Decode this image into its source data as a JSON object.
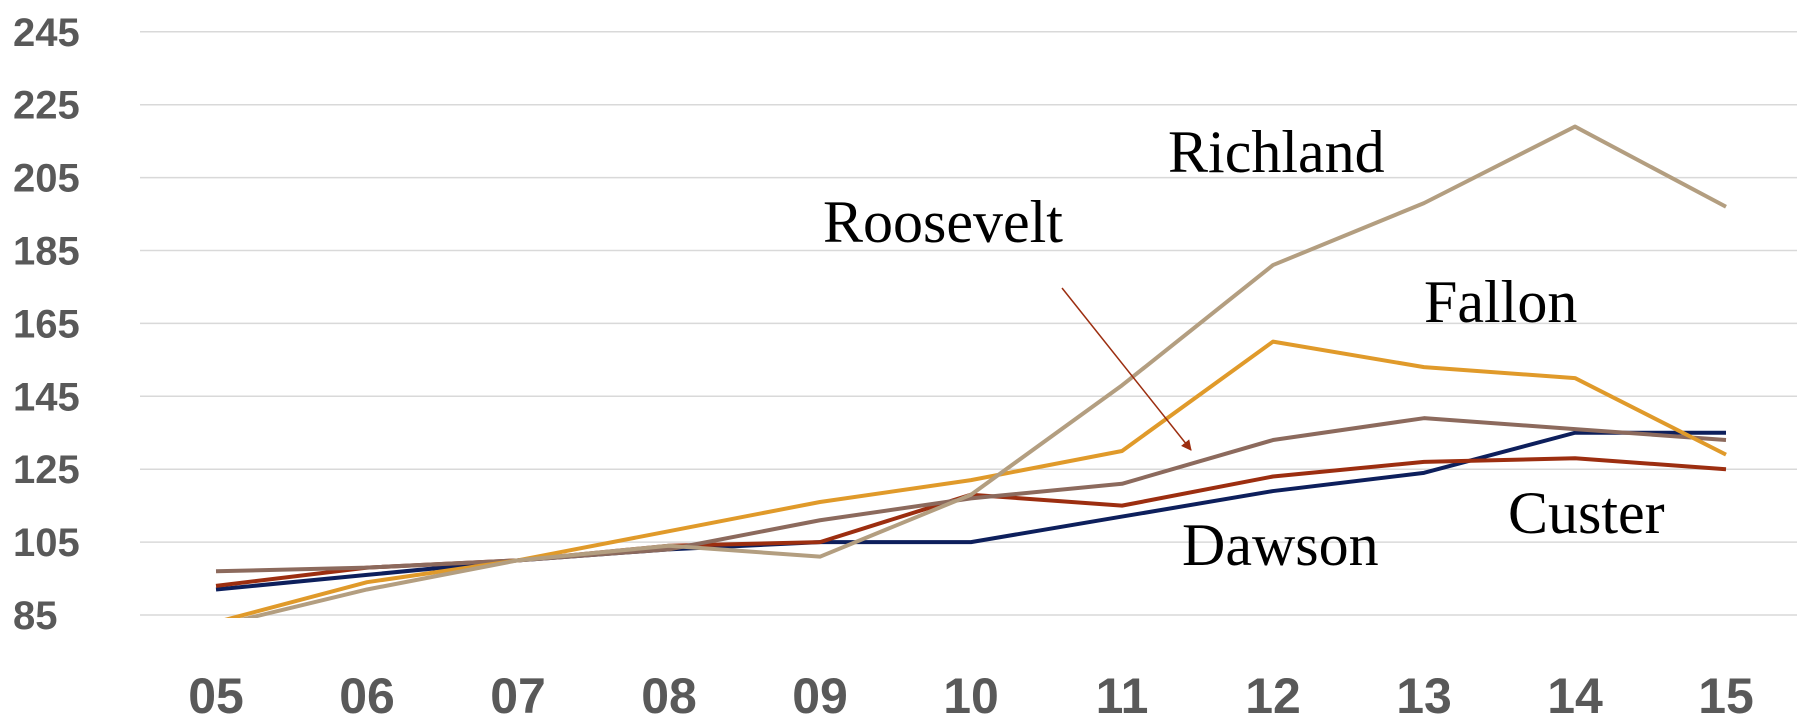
{
  "chart_data": {
    "type": "line",
    "categories": [
      "05",
      "06",
      "07",
      "08",
      "09",
      "10",
      "11",
      "12",
      "13",
      "14",
      "15"
    ],
    "ylim": [
      85,
      245
    ],
    "yticks": [
      85,
      105,
      125,
      145,
      165,
      185,
      205,
      225,
      245
    ],
    "grid": true,
    "series": [
      {
        "name": "Dawson",
        "color": "#0d1f5c",
        "values": [
          92,
          96,
          100,
          103,
          105,
          105,
          112,
          119,
          124,
          135,
          135
        ]
      },
      {
        "name": "Custer",
        "color": "#9c2e10",
        "values": [
          93,
          98,
          100,
          104,
          105,
          118,
          115,
          123,
          127,
          128,
          125
        ]
      },
      {
        "name": "Roosevelt",
        "color": "#8c6a5d",
        "values": [
          97,
          98,
          100,
          103,
          111,
          117,
          121,
          133,
          139,
          136,
          133
        ]
      },
      {
        "name": "Fallon",
        "color": "#e09a2a",
        "values": [
          83,
          94,
          100,
          108,
          116,
          122,
          130,
          160,
          153,
          150,
          129
        ]
      },
      {
        "name": "Richland",
        "color": "#b39e80",
        "values": [
          82,
          92,
          100,
          104,
          101,
          118,
          148,
          181,
          198,
          219,
          197
        ]
      }
    ]
  },
  "labels": {
    "richland": "Richland",
    "roosevelt": "Roosevelt",
    "fallon": "Fallon",
    "custer": "Custer",
    "dawson": "Dawson"
  },
  "annotation": {
    "arrow_color": "#9c2e10",
    "points_to": "Roosevelt"
  }
}
